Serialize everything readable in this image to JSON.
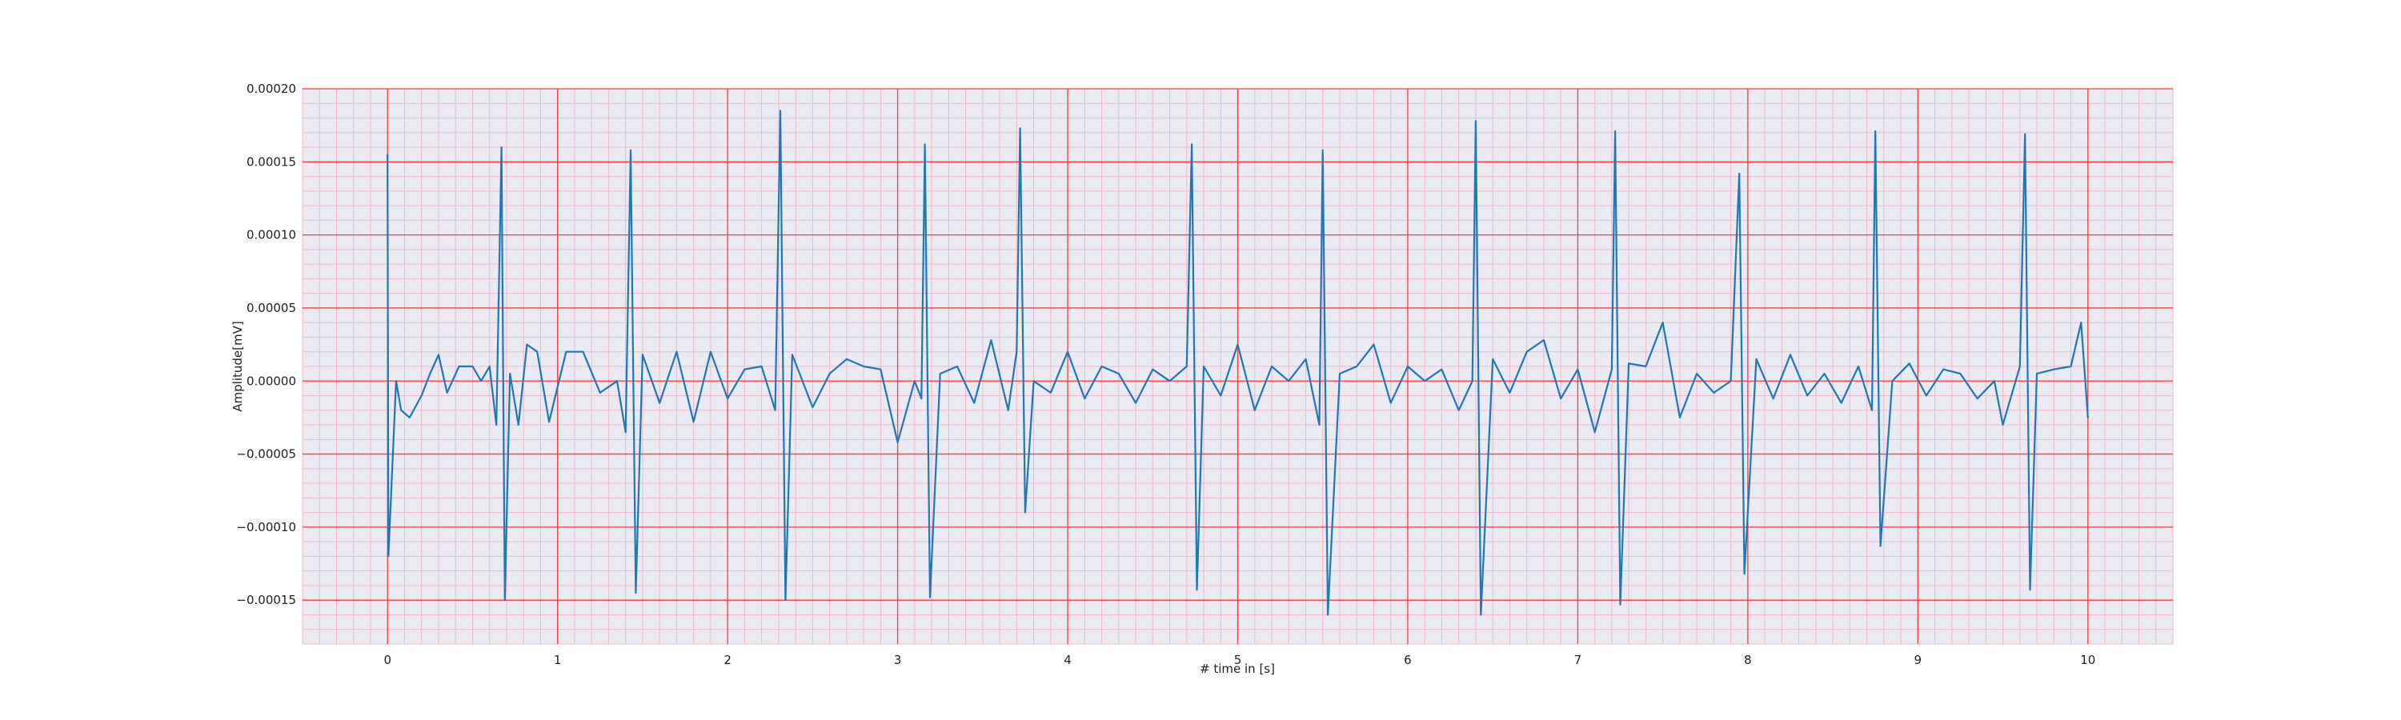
{
  "chart_data": {
    "type": "line",
    "title": "",
    "xlabel": "# time in [s]",
    "ylabel": "Amplitude[mV]",
    "xlim": [
      -0.5,
      10.5
    ],
    "ylim": [
      -0.00018,
      0.0002
    ],
    "x_ticks": [
      0,
      1,
      2,
      3,
      4,
      5,
      6,
      7,
      8,
      9,
      10
    ],
    "x_tick_labels": [
      "0",
      "1",
      "2",
      "3",
      "4",
      "5",
      "6",
      "7",
      "8",
      "9",
      "10"
    ],
    "y_ticks": [
      -0.00015,
      -0.0001,
      -5e-05,
      0,
      5e-05,
      0.0001,
      0.00015,
      0.0002
    ],
    "y_tick_labels": [
      "−0.00015",
      "−0.00010",
      "−0.00005",
      "0.00000",
      "0.00005",
      "0.00010",
      "0.00015",
      "0.00020"
    ],
    "minor_grid_x_step": 0.1,
    "minor_grid_y_step": 1e-05,
    "grid": true,
    "colors": {
      "series": "#1f77b4",
      "major_grid": "#ff3b3b",
      "minor_grid": "#f5b6c8",
      "plot_background": "#eaeaf2"
    },
    "series": [
      {
        "points": [
          [
            0.0,
            0.000155
          ],
          [
            0.005,
            -0.00012
          ],
          [
            0.05,
            0.0
          ],
          [
            0.08,
            -2e-05
          ],
          [
            0.13,
            -2.5e-05
          ],
          [
            0.2,
            -1e-05
          ],
          [
            0.25,
            5e-06
          ],
          [
            0.3,
            1.8e-05
          ],
          [
            0.35,
            -8e-06
          ],
          [
            0.42,
            1e-05
          ],
          [
            0.5,
            1e-05
          ],
          [
            0.55,
            0.0
          ],
          [
            0.6,
            1e-05
          ],
          [
            0.64,
            -3e-05
          ],
          [
            0.67,
            0.00016
          ],
          [
            0.69,
            -0.00015
          ],
          [
            0.72,
            5e-06
          ],
          [
            0.77,
            -3e-05
          ],
          [
            0.82,
            2.5e-05
          ],
          [
            0.88,
            2e-05
          ],
          [
            0.95,
            -2.8e-05
          ],
          [
            1.05,
            2e-05
          ],
          [
            1.15,
            2e-05
          ],
          [
            1.25,
            -8e-06
          ],
          [
            1.35,
            0.0
          ],
          [
            1.4,
            -3.5e-05
          ],
          [
            1.43,
            0.000158
          ],
          [
            1.46,
            -0.000145
          ],
          [
            1.5,
            1.8e-05
          ],
          [
            1.6,
            -1.5e-05
          ],
          [
            1.7,
            2e-05
          ],
          [
            1.8,
            -2.8e-05
          ],
          [
            1.9,
            2e-05
          ],
          [
            2.0,
            -1.2e-05
          ],
          [
            2.1,
            8e-06
          ],
          [
            2.2,
            1e-05
          ],
          [
            2.28,
            -2e-05
          ],
          [
            2.31,
            0.000185
          ],
          [
            2.34,
            -0.00015
          ],
          [
            2.38,
            1.8e-05
          ],
          [
            2.5,
            -1.8e-05
          ],
          [
            2.6,
            5e-06
          ],
          [
            2.7,
            1.5e-05
          ],
          [
            2.8,
            1e-05
          ],
          [
            2.9,
            8e-06
          ],
          [
            3.0,
            -4.2e-05
          ],
          [
            3.1,
            0.0
          ],
          [
            3.14,
            -1.2e-05
          ],
          [
            3.16,
            0.000162
          ],
          [
            3.19,
            -0.000148
          ],
          [
            3.25,
            5e-06
          ],
          [
            3.35,
            1e-05
          ],
          [
            3.45,
            -1.5e-05
          ],
          [
            3.55,
            2.8e-05
          ],
          [
            3.65,
            -2e-05
          ],
          [
            3.7,
            2e-05
          ],
          [
            3.72,
            0.000173
          ],
          [
            3.75,
            -9e-05
          ],
          [
            3.8,
            0.0
          ],
          [
            3.9,
            -8e-06
          ],
          [
            4.0,
            2e-05
          ],
          [
            4.1,
            -1.2e-05
          ],
          [
            4.2,
            1e-05
          ],
          [
            4.3,
            5e-06
          ],
          [
            4.4,
            -1.5e-05
          ],
          [
            4.5,
            8e-06
          ],
          [
            4.6,
            0.0
          ],
          [
            4.7,
            1e-05
          ],
          [
            4.73,
            0.000162
          ],
          [
            4.76,
            -0.000143
          ],
          [
            4.8,
            1e-05
          ],
          [
            4.9,
            -1e-05
          ],
          [
            5.0,
            2.5e-05
          ],
          [
            5.1,
            -2e-05
          ],
          [
            5.2,
            1e-05
          ],
          [
            5.3,
            0.0
          ],
          [
            5.4,
            1.5e-05
          ],
          [
            5.48,
            -3e-05
          ],
          [
            5.5,
            0.000158
          ],
          [
            5.53,
            -0.00016
          ],
          [
            5.6,
            5e-06
          ],
          [
            5.7,
            1e-05
          ],
          [
            5.8,
            2.5e-05
          ],
          [
            5.9,
            -1.5e-05
          ],
          [
            6.0,
            1e-05
          ],
          [
            6.1,
            0.0
          ],
          [
            6.2,
            8e-06
          ],
          [
            6.3,
            -2e-05
          ],
          [
            6.38,
            0.0
          ],
          [
            6.4,
            0.000178
          ],
          [
            6.43,
            -0.00016
          ],
          [
            6.5,
            1.5e-05
          ],
          [
            6.6,
            -8e-06
          ],
          [
            6.7,
            2e-05
          ],
          [
            6.8,
            2.8e-05
          ],
          [
            6.9,
            -1.2e-05
          ],
          [
            7.0,
            8e-06
          ],
          [
            7.1,
            -3.5e-05
          ],
          [
            7.2,
            8e-06
          ],
          [
            7.22,
            0.000171
          ],
          [
            7.25,
            -0.000153
          ],
          [
            7.3,
            1.2e-05
          ],
          [
            7.4,
            1e-05
          ],
          [
            7.5,
            4e-05
          ],
          [
            7.6,
            -2.5e-05
          ],
          [
            7.7,
            5e-06
          ],
          [
            7.8,
            -8e-06
          ],
          [
            7.9,
            0.0
          ],
          [
            7.95,
            0.000142
          ],
          [
            7.98,
            -0.000132
          ],
          [
            8.05,
            1.5e-05
          ],
          [
            8.15,
            -1.2e-05
          ],
          [
            8.25,
            1.8e-05
          ],
          [
            8.35,
            -1e-05
          ],
          [
            8.45,
            5e-06
          ],
          [
            8.55,
            -1.5e-05
          ],
          [
            8.65,
            1e-05
          ],
          [
            8.73,
            -2e-05
          ],
          [
            8.75,
            0.000171
          ],
          [
            8.78,
            -0.000113
          ],
          [
            8.85,
            0.0
          ],
          [
            8.95,
            1.2e-05
          ],
          [
            9.05,
            -1e-05
          ],
          [
            9.15,
            8e-06
          ],
          [
            9.25,
            5e-06
          ],
          [
            9.35,
            -1.2e-05
          ],
          [
            9.45,
            0.0
          ],
          [
            9.5,
            -3e-05
          ],
          [
            9.6,
            1e-05
          ],
          [
            9.63,
            0.000169
          ],
          [
            9.66,
            -0.000143
          ],
          [
            9.7,
            5e-06
          ],
          [
            9.8,
            8e-06
          ],
          [
            9.9,
            1e-05
          ],
          [
            9.96,
            4e-05
          ],
          [
            10.0,
            -2.5e-05
          ]
        ]
      }
    ]
  }
}
